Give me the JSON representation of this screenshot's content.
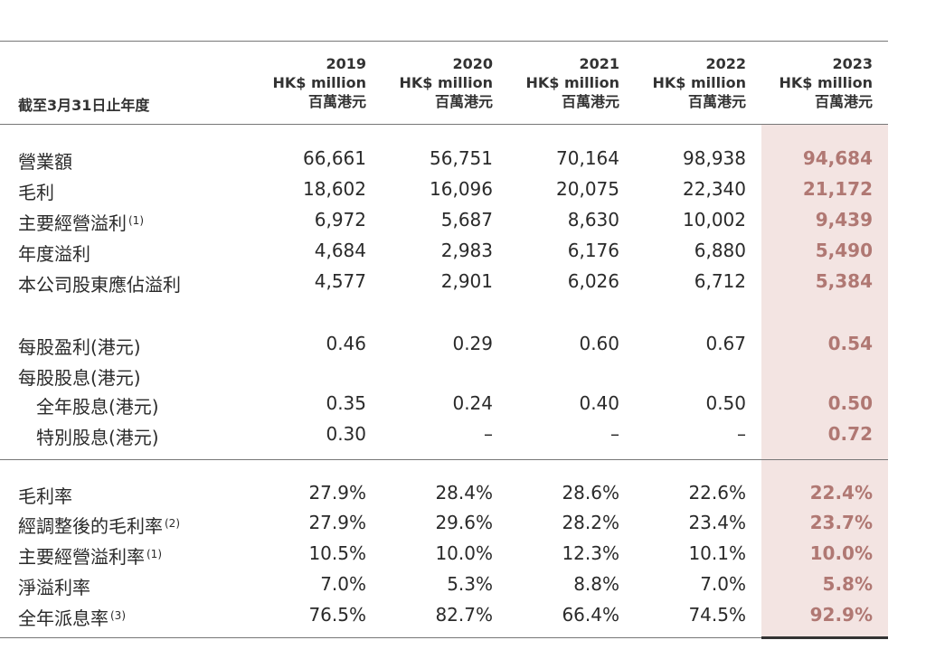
{
  "period_label": "截至3月31日止年度",
  "columns": [
    {
      "year": "2019",
      "unit_en": "HK$ million",
      "unit_zh": "百萬港元"
    },
    {
      "year": "2020",
      "unit_en": "HK$ million",
      "unit_zh": "百萬港元"
    },
    {
      "year": "2021",
      "unit_en": "HK$ million",
      "unit_zh": "百萬港元"
    },
    {
      "year": "2022",
      "unit_en": "HK$ million",
      "unit_zh": "百萬港元"
    },
    {
      "year": "2023",
      "unit_en": "HK$ million",
      "unit_zh": "百萬港元"
    }
  ],
  "rows": [
    {
      "label": "營業額",
      "note": "",
      "values": [
        "66,661",
        "56,751",
        "70,164",
        "98,938",
        "94,684"
      ]
    },
    {
      "label": "毛利",
      "note": "",
      "values": [
        "18,602",
        "16,096",
        "20,075",
        "22,340",
        "21,172"
      ]
    },
    {
      "label": "主要經營溢利",
      "note": "(1)",
      "values": [
        "6,972",
        "5,687",
        "8,630",
        "10,002",
        "9,439"
      ]
    },
    {
      "label": "年度溢利",
      "note": "",
      "values": [
        "4,684",
        "2,983",
        "6,176",
        "6,880",
        "5,490"
      ]
    },
    {
      "label": "本公司股東應佔溢利",
      "note": "",
      "values": [
        "4,577",
        "2,901",
        "6,026",
        "6,712",
        "5,384"
      ]
    },
    {
      "label": "每股盈利(港元)",
      "note": "",
      "values": [
        "0.46",
        "0.29",
        "0.60",
        "0.67",
        "0.54"
      ]
    },
    {
      "label": "每股股息(港元)",
      "note": "",
      "values": [
        "",
        "",
        "",
        "",
        ""
      ]
    },
    {
      "label": "全年股息(港元)",
      "note": "",
      "values": [
        "0.35",
        "0.24",
        "0.40",
        "0.50",
        "0.50"
      ]
    },
    {
      "label": "特別股息(港元)",
      "note": "",
      "values": [
        "0.30",
        "–",
        "–",
        "–",
        "0.72"
      ]
    },
    {
      "label": "毛利率",
      "note": "",
      "values": [
        "27.9%",
        "28.4%",
        "28.6%",
        "22.6%",
        "22.4%"
      ]
    },
    {
      "label": "經調整後的毛利率",
      "note": "(2)",
      "values": [
        "27.9%",
        "29.6%",
        "28.2%",
        "23.4%",
        "23.7%"
      ]
    },
    {
      "label": "主要經營溢利率",
      "note": "(1)",
      "values": [
        "10.5%",
        "10.0%",
        "12.3%",
        "10.1%",
        "10.0%"
      ]
    },
    {
      "label": "淨溢利率",
      "note": "",
      "values": [
        "7.0%",
        "5.3%",
        "8.8%",
        "7.0%",
        "5.8%"
      ]
    },
    {
      "label": "全年派息率",
      "note": "(3)",
      "values": [
        "76.5%",
        "82.7%",
        "66.4%",
        "74.5%",
        "92.9%"
      ]
    }
  ],
  "colors": {
    "highlight_bg": "#f3e4e2",
    "highlight_text": "#b07873"
  }
}
